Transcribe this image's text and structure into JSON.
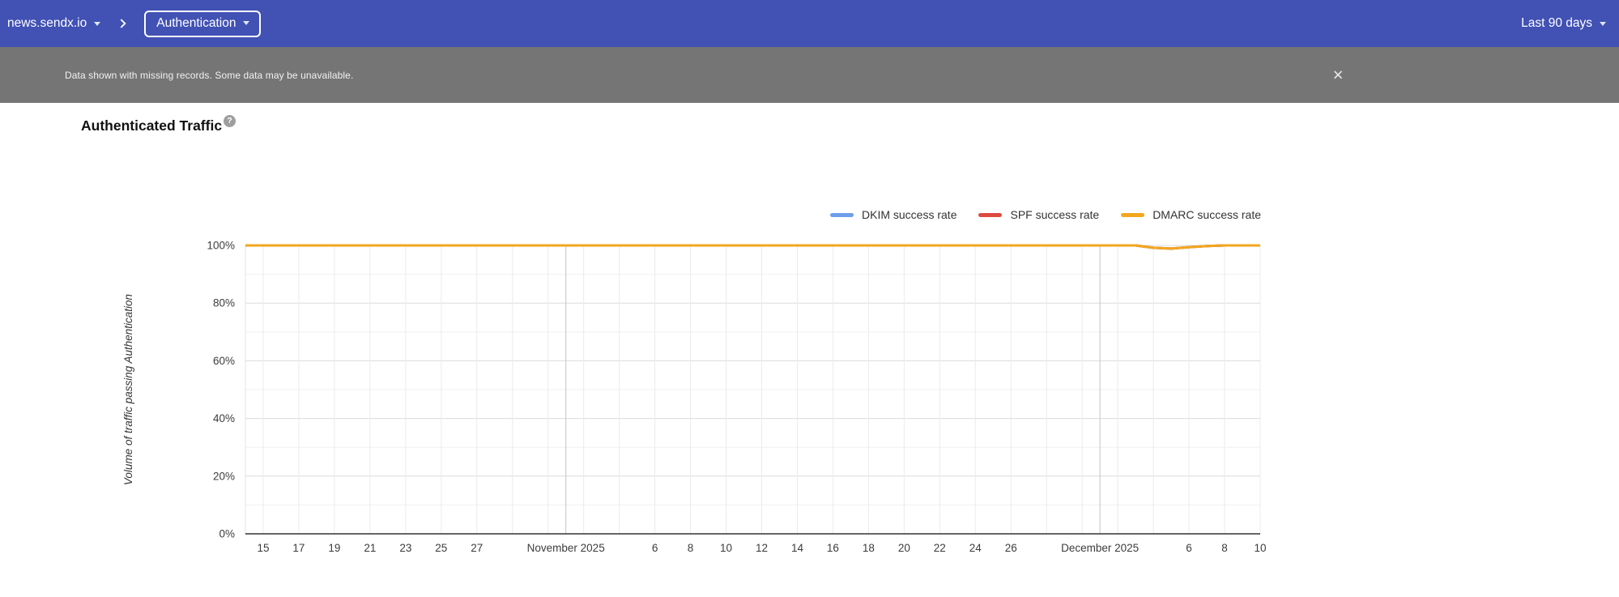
{
  "topbar": {
    "domain": "news.sendx.io",
    "report": "Authentication",
    "date_range": "Last 90 days"
  },
  "banner": {
    "message": "Data shown with missing records. Some data may be unavailable.",
    "close_label": "✕"
  },
  "chart": {
    "title": "Authenticated Traffic",
    "help": "?"
  },
  "colors": {
    "topbar_bg": "#4151b4",
    "banner_bg": "#757575",
    "dkim": "#6e9eec",
    "spf": "#dd4b3e",
    "dmarc": "#f2a71e"
  },
  "chart_data": {
    "type": "line",
    "title": "Authenticated Traffic",
    "xlabel": "",
    "ylabel": "Volume of traffic passing Authentication",
    "ylim": [
      0,
      100
    ],
    "y_tick_labels": [
      "0%",
      "20%",
      "40%",
      "60%",
      "80%",
      "100%"
    ],
    "grid": true,
    "legend_position": "top-right",
    "x_start": "2025-10-14",
    "x_end": "2025-12-10",
    "x_ticks": [
      {
        "label": "15",
        "date": "2025-10-15"
      },
      {
        "label": "17",
        "date": "2025-10-17"
      },
      {
        "label": "19",
        "date": "2025-10-19"
      },
      {
        "label": "21",
        "date": "2025-10-21"
      },
      {
        "label": "23",
        "date": "2025-10-23"
      },
      {
        "label": "25",
        "date": "2025-10-25"
      },
      {
        "label": "27",
        "date": "2025-10-27"
      },
      {
        "label": "November 2025",
        "date": "2025-11-01",
        "month": true
      },
      {
        "label": "6",
        "date": "2025-11-06"
      },
      {
        "label": "8",
        "date": "2025-11-08"
      },
      {
        "label": "10",
        "date": "2025-11-10"
      },
      {
        "label": "12",
        "date": "2025-11-12"
      },
      {
        "label": "14",
        "date": "2025-11-14"
      },
      {
        "label": "16",
        "date": "2025-11-16"
      },
      {
        "label": "18",
        "date": "2025-11-18"
      },
      {
        "label": "20",
        "date": "2025-11-20"
      },
      {
        "label": "22",
        "date": "2025-11-22"
      },
      {
        "label": "24",
        "date": "2025-11-24"
      },
      {
        "label": "26",
        "date": "2025-11-26"
      },
      {
        "label": "December 2025",
        "date": "2025-12-01",
        "month": true
      },
      {
        "label": "6",
        "date": "2025-12-06"
      },
      {
        "label": "8",
        "date": "2025-12-08"
      },
      {
        "label": "10",
        "date": "2025-12-10"
      }
    ],
    "dates": [
      "2025-10-14",
      "2025-10-15",
      "2025-10-16",
      "2025-10-17",
      "2025-10-18",
      "2025-10-19",
      "2025-10-20",
      "2025-10-21",
      "2025-10-22",
      "2025-10-23",
      "2025-10-24",
      "2025-10-25",
      "2025-10-26",
      "2025-10-27",
      "2025-10-28",
      "2025-10-29",
      "2025-10-30",
      "2025-10-31",
      "2025-11-01",
      "2025-11-02",
      "2025-11-03",
      "2025-11-04",
      "2025-11-05",
      "2025-11-06",
      "2025-11-07",
      "2025-11-08",
      "2025-11-09",
      "2025-11-10",
      "2025-11-11",
      "2025-11-12",
      "2025-11-13",
      "2025-11-14",
      "2025-11-15",
      "2025-11-16",
      "2025-11-17",
      "2025-11-18",
      "2025-11-19",
      "2025-11-20",
      "2025-11-21",
      "2025-11-22",
      "2025-11-23",
      "2025-11-24",
      "2025-11-25",
      "2025-11-26",
      "2025-11-27",
      "2025-11-28",
      "2025-11-29",
      "2025-11-30",
      "2025-12-01",
      "2025-12-02",
      "2025-12-03",
      "2025-12-04",
      "2025-12-05",
      "2025-12-06",
      "2025-12-07",
      "2025-12-08",
      "2025-12-09",
      "2025-12-10"
    ],
    "series": [
      {
        "name": "DKIM success rate",
        "color": "#6e9eec",
        "values": [
          100,
          100,
          100,
          100,
          100,
          100,
          100,
          100,
          100,
          100,
          100,
          100,
          100,
          100,
          100,
          100,
          100,
          100,
          100,
          100,
          100,
          100,
          100,
          100,
          100,
          100,
          100,
          100,
          100,
          100,
          100,
          100,
          100,
          100,
          100,
          100,
          100,
          100,
          100,
          100,
          100,
          100,
          100,
          100,
          100,
          100,
          100,
          100,
          100,
          100,
          100,
          99.2,
          98.9,
          99.4,
          99.8,
          100,
          100,
          100
        ]
      },
      {
        "name": "SPF success rate",
        "color": "#dd4b3e",
        "values": [
          100,
          100,
          100,
          100,
          100,
          100,
          100,
          100,
          100,
          100,
          100,
          100,
          100,
          100,
          100,
          100,
          100,
          100,
          100,
          100,
          100,
          100,
          100,
          100,
          100,
          100,
          100,
          100,
          100,
          100,
          100,
          100,
          100,
          100,
          100,
          100,
          100,
          100,
          100,
          100,
          100,
          100,
          100,
          100,
          100,
          100,
          100,
          100,
          100,
          100,
          100,
          99.2,
          98.9,
          99.4,
          99.8,
          100,
          100,
          100
        ]
      },
      {
        "name": "DMARC success rate",
        "color": "#f2a71e",
        "values": [
          100,
          100,
          100,
          100,
          100,
          100,
          100,
          100,
          100,
          100,
          100,
          100,
          100,
          100,
          100,
          100,
          100,
          100,
          100,
          100,
          100,
          100,
          100,
          100,
          100,
          100,
          100,
          100,
          100,
          100,
          100,
          100,
          100,
          100,
          100,
          100,
          100,
          100,
          100,
          100,
          100,
          100,
          100,
          100,
          100,
          100,
          100,
          100,
          100,
          100,
          100,
          99.2,
          98.9,
          99.4,
          99.8,
          100,
          100,
          100
        ]
      }
    ]
  }
}
